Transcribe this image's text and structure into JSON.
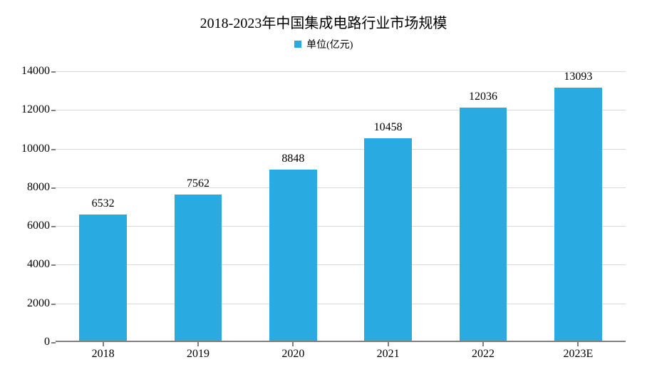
{
  "chart": {
    "type": "bar",
    "title": "2018-2023年中国集成电路行业市场规模",
    "title_fontsize": 20,
    "legend": {
      "label": "单位(亿元)",
      "swatch_color": "#29abe2",
      "fontsize": 14
    },
    "categories": [
      "2018",
      "2019",
      "2020",
      "2021",
      "2022",
      "2023E"
    ],
    "values": [
      6532,
      7562,
      8848,
      10458,
      12036,
      13093
    ],
    "bar_color": "#29abe2",
    "bar_width_ratio": 0.5,
    "ylim": [
      0,
      14000
    ],
    "ytick_step": 2000,
    "axis_color": "#808080",
    "grid_color": "#d9d9d9",
    "background_color": "#ffffff",
    "tick_fontsize": 16,
    "datalabel_fontsize": 16,
    "text_color": "#000000"
  }
}
